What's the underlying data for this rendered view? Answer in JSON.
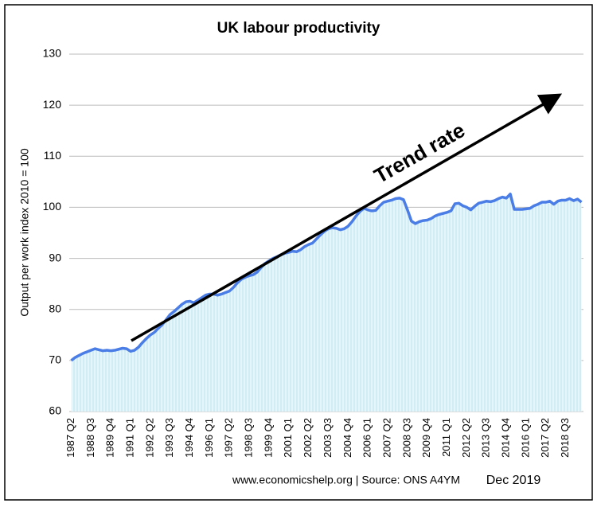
{
  "chart_data": {
    "type": "area-line",
    "title": "UK labour productivity",
    "y_label": "Output per work index 2010 = 100",
    "annotation": "Trend rate",
    "source": "www.economicshelp.org | Source: ONS A4YM",
    "date": "Dec 2019",
    "categories": [
      "1987 Q2",
      null,
      null,
      null,
      null,
      "1988 Q3",
      null,
      null,
      null,
      null,
      "1989 Q4",
      null,
      null,
      null,
      null,
      "1991 Q1",
      null,
      null,
      null,
      null,
      "1992 Q2",
      null,
      null,
      null,
      null,
      "1993 Q3",
      null,
      null,
      null,
      null,
      "1994 Q4",
      null,
      null,
      null,
      null,
      "1996 Q1",
      null,
      null,
      null,
      null,
      "1997 Q2",
      null,
      null,
      null,
      null,
      "1998 Q3",
      null,
      null,
      null,
      null,
      "1999 Q4",
      null,
      null,
      null,
      null,
      "2001 Q1",
      null,
      null,
      null,
      null,
      "2002 Q2",
      null,
      null,
      null,
      null,
      "2003 Q3",
      null,
      null,
      null,
      null,
      "2004 Q4",
      null,
      null,
      null,
      null,
      "2006 Q1",
      null,
      null,
      null,
      null,
      "2007 Q2",
      null,
      null,
      null,
      null,
      "2008 Q3",
      null,
      null,
      null,
      null,
      "2009 Q4",
      null,
      null,
      null,
      null,
      "2011 Q1",
      null,
      null,
      null,
      null,
      "2012 Q2",
      null,
      null,
      null,
      null,
      "2013 Q3",
      null,
      null,
      null,
      null,
      "2014 Q4",
      null,
      null,
      null,
      null,
      "2016 Q1",
      null,
      null,
      null,
      null,
      "2017 Q2",
      null,
      null,
      null,
      null,
      "2018 Q3",
      null,
      null,
      null,
      null
    ],
    "values": [
      70,
      70.6,
      71,
      71.4,
      71.7,
      72,
      72.3,
      72.1,
      71.9,
      72,
      71.9,
      72,
      72.2,
      72.4,
      72.3,
      71.8,
      72,
      72.6,
      73.5,
      74.3,
      75,
      75.5,
      76.3,
      77,
      78,
      79,
      79.6,
      80.3,
      81,
      81.5,
      81.6,
      81.3,
      81.8,
      82.3,
      82.8,
      83,
      83,
      82.8,
      83,
      83.3,
      83.6,
      84.3,
      85.2,
      85.9,
      86.3,
      86.6,
      86.8,
      87.3,
      88.2,
      89,
      89.5,
      90,
      90.3,
      90.7,
      91,
      91.2,
      91.4,
      91.3,
      91.7,
      92.3,
      92.7,
      93,
      93.8,
      94.6,
      95.3,
      95.8,
      96,
      95.9,
      95.6,
      95.8,
      96.3,
      97.2,
      98.3,
      99.2,
      99.8,
      99.5,
      99.3,
      99.4,
      100.3,
      101,
      101.2,
      101.4,
      101.7,
      101.8,
      101.5,
      99.5,
      97.3,
      96.8,
      97.2,
      97.4,
      97.5,
      97.8,
      98.3,
      98.6,
      98.8,
      99,
      99.3,
      100.7,
      100.8,
      100.3,
      100,
      99.5,
      100.2,
      100.8,
      101,
      101.2,
      101.1,
      101.3,
      101.7,
      102,
      101.8,
      102.6,
      99.6,
      99.6,
      99.6,
      99.7,
      99.8,
      100.3,
      100.6,
      101,
      101,
      101.2,
      100.6,
      101.2,
      101.4,
      101.4,
      101.7,
      101.3,
      101.6,
      101
    ],
    "color": "#4a7de6",
    "fill_color": "#e6f5fa",
    "ylim": [
      60,
      130
    ],
    "yticks": [
      60,
      70,
      80,
      90,
      100,
      110,
      120,
      130
    ],
    "grid": true
  }
}
